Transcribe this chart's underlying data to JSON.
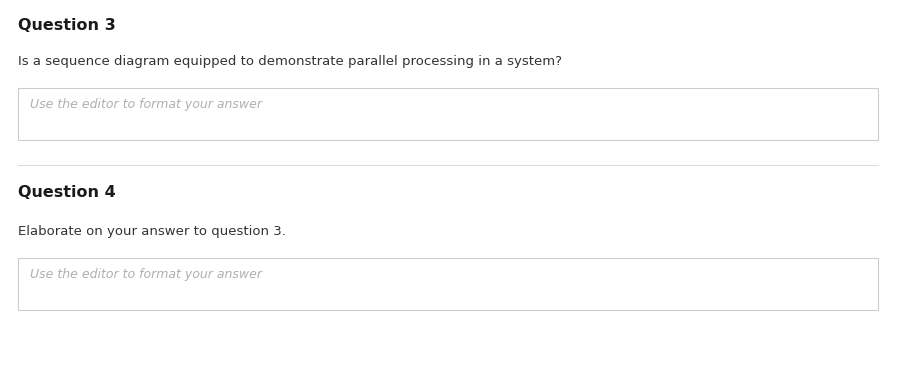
{
  "background_color": "#ffffff",
  "q3_label": "Question 3",
  "q3_text": "Is a sequence diagram equipped to demonstrate parallel processing in a system?",
  "q3_placeholder": "Use the editor to format your answer",
  "q4_label": "Question 4",
  "q4_text": "Elaborate on your answer to question 3.",
  "q4_placeholder": "Use the editor to format your answer",
  "q_label_fontsize": 11.5,
  "q_text_fontsize": 9.5,
  "placeholder_fontsize": 9.0,
  "q_label_color": "#1a1a1a",
  "q_text_color": "#333333",
  "placeholder_color": "#b0b0b0",
  "box_border_color": "#cccccc",
  "divider_color": "#dddddd",
  "fig_width": 8.98,
  "fig_height": 3.89,
  "dpi": 100
}
